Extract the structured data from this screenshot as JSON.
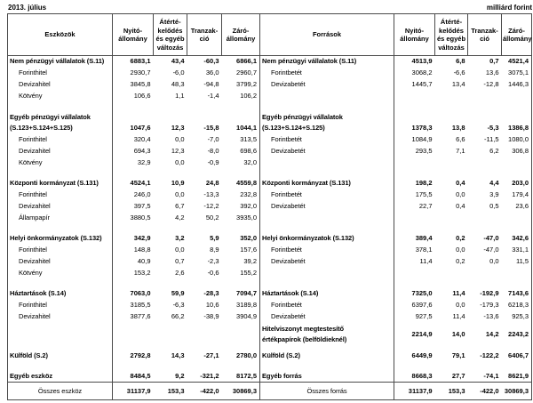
{
  "meta": {
    "period": "2013. július",
    "unit": "milliárd forint"
  },
  "header": {
    "assets": "Eszközök",
    "sources": "Források",
    "opening": "Nyitó-\nállomány",
    "revaluation": "Átérté-\nkelődés\nés egyéb\nváltozás",
    "transaction": "Tranzak-\nció",
    "closing": "Záró-\nállomány"
  },
  "rows": [
    {
      "type": "group",
      "left": {
        "label": "Nem pénzügyi vállalatok (S.11)",
        "values": [
          "6883,1",
          "43,4",
          "-60,3",
          "6866,1"
        ]
      },
      "right": {
        "label": "Nem pénzügyi vállalatok (S.11)",
        "values": [
          "4513,9",
          "6,8",
          "0,7",
          "4521,4"
        ]
      }
    },
    {
      "type": "sub",
      "left": {
        "label": "Forinthitel",
        "values": [
          "2930,7",
          "-6,0",
          "36,0",
          "2960,7"
        ]
      },
      "right": {
        "label": "Forintbetét",
        "values": [
          "3068,2",
          "-6,6",
          "13,6",
          "3075,1"
        ]
      }
    },
    {
      "type": "sub",
      "left": {
        "label": "Devizahitel",
        "values": [
          "3845,8",
          "48,3",
          "-94,8",
          "3799,2"
        ]
      },
      "right": {
        "label": "Devizabetét",
        "values": [
          "1445,7",
          "13,4",
          "-12,8",
          "1446,3"
        ]
      }
    },
    {
      "type": "sub",
      "left": {
        "label": "Kötvény",
        "values": [
          "106,6",
          "1,1",
          "-1,4",
          "106,2"
        ]
      },
      "right": {
        "label": "",
        "values": [
          "",
          "",
          "",
          ""
        ]
      }
    },
    {
      "type": "blank"
    },
    {
      "type": "group2",
      "left": {
        "label": "Egyéb pénzügyi vállalatok\n(S.123+S.124+S.125)",
        "values": [
          "1047,6",
          "12,3",
          "-15,8",
          "1044,1"
        ]
      },
      "right": {
        "label": "Egyéb pénzügyi vállalatok\n(S.123+S.124+S.125)",
        "values": [
          "1378,3",
          "13,8",
          "-5,3",
          "1386,8"
        ]
      }
    },
    {
      "type": "sub",
      "left": {
        "label": "Forinthitel",
        "values": [
          "320,4",
          "0,0",
          "-7,0",
          "313,5"
        ]
      },
      "right": {
        "label": "Forintbetét",
        "values": [
          "1084,9",
          "6,6",
          "-11,5",
          "1080,0"
        ]
      }
    },
    {
      "type": "sub",
      "left": {
        "label": "Devizahitel",
        "values": [
          "694,3",
          "12,3",
          "-8,0",
          "698,6"
        ]
      },
      "right": {
        "label": "Devizabetét",
        "values": [
          "293,5",
          "7,1",
          "6,2",
          "306,8"
        ]
      }
    },
    {
      "type": "sub",
      "left": {
        "label": "Kötvény",
        "values": [
          "32,9",
          "0,0",
          "-0,9",
          "32,0"
        ]
      },
      "right": {
        "label": "",
        "values": [
          "",
          "",
          "",
          ""
        ]
      }
    },
    {
      "type": "blank"
    },
    {
      "type": "group",
      "left": {
        "label": "Központi kormányzat (S.131)",
        "values": [
          "4524,1",
          "10,9",
          "24,8",
          "4559,8"
        ]
      },
      "right": {
        "label": "Központi kormányzat (S.131)",
        "values": [
          "198,2",
          "0,4",
          "4,4",
          "203,0"
        ]
      }
    },
    {
      "type": "sub",
      "left": {
        "label": "Forinthitel",
        "values": [
          "246,0",
          "0,0",
          "-13,3",
          "232,8"
        ]
      },
      "right": {
        "label": "Forintbetét",
        "values": [
          "175,5",
          "0,0",
          "3,9",
          "179,4"
        ]
      }
    },
    {
      "type": "sub",
      "left": {
        "label": "Devizahitel",
        "values": [
          "397,5",
          "6,7",
          "-12,2",
          "392,0"
        ]
      },
      "right": {
        "label": "Devizabetét",
        "values": [
          "22,7",
          "0,4",
          "0,5",
          "23,6"
        ]
      }
    },
    {
      "type": "sub",
      "left": {
        "label": "Állampapír",
        "values": [
          "3880,5",
          "4,2",
          "50,2",
          "3935,0"
        ]
      },
      "right": {
        "label": "",
        "values": [
          "",
          "",
          "",
          ""
        ]
      }
    },
    {
      "type": "blank"
    },
    {
      "type": "group",
      "left": {
        "label": "Helyi önkormányzatok (S.132)",
        "values": [
          "342,9",
          "3,2",
          "5,9",
          "352,0"
        ]
      },
      "right": {
        "label": "Helyi önkormányzatok (S.132)",
        "values": [
          "389,4",
          "0,2",
          "-47,0",
          "342,6"
        ]
      }
    },
    {
      "type": "sub",
      "left": {
        "label": "Forinthitel",
        "values": [
          "148,8",
          "0,0",
          "8,9",
          "157,6"
        ]
      },
      "right": {
        "label": "Forintbetét",
        "values": [
          "378,1",
          "0,0",
          "-47,0",
          "331,1"
        ]
      }
    },
    {
      "type": "sub",
      "left": {
        "label": "Devizahitel",
        "values": [
          "40,9",
          "0,7",
          "-2,3",
          "39,2"
        ]
      },
      "right": {
        "label": "Devizabetét",
        "values": [
          "11,4",
          "0,2",
          "0,0",
          "11,5"
        ]
      }
    },
    {
      "type": "sub",
      "left": {
        "label": "Kötvény",
        "values": [
          "153,2",
          "2,6",
          "-0,6",
          "155,2"
        ]
      },
      "right": {
        "label": "",
        "values": [
          "",
          "",
          "",
          ""
        ]
      }
    },
    {
      "type": "blank"
    },
    {
      "type": "group",
      "left": {
        "label": "Háztartások (S.14)",
        "values": [
          "7063,0",
          "59,9",
          "-28,3",
          "7094,7"
        ]
      },
      "right": {
        "label": "Háztartások (S.14)",
        "values": [
          "7325,0",
          "11,4",
          "-192,9",
          "7143,6"
        ]
      }
    },
    {
      "type": "sub",
      "left": {
        "label": "Forinthitel",
        "values": [
          "3185,5",
          "-6,3",
          "10,6",
          "3189,8"
        ]
      },
      "right": {
        "label": "Forintbetét",
        "values": [
          "6397,6",
          "0,0",
          "-179,3",
          "6218,3"
        ]
      }
    },
    {
      "type": "sub",
      "left": {
        "label": "Devizahitel",
        "values": [
          "3877,6",
          "66,2",
          "-38,9",
          "3904,9"
        ]
      },
      "right": {
        "label": "Devizabetét",
        "values": [
          "927,5",
          "11,4",
          "-13,6",
          "925,3"
        ]
      }
    },
    {
      "type": "group2m",
      "left": {
        "label": "",
        "values": [
          "",
          "",
          "",
          ""
        ]
      },
      "right": {
        "label": "Hitelviszonyt megtestesítő\nértékpapírok (belföldieknél)",
        "values": [
          "2214,9",
          "14,0",
          "14,2",
          "2243,2"
        ]
      }
    },
    {
      "type": "blank-sm"
    },
    {
      "type": "group",
      "left": {
        "label": "Külföld (S.2)",
        "values": [
          "2792,8",
          "14,3",
          "-27,1",
          "2780,0"
        ]
      },
      "right": {
        "label": "Külföld (S.2)",
        "values": [
          "6449,9",
          "79,1",
          "-122,2",
          "6406,7"
        ]
      }
    },
    {
      "type": "blank"
    },
    {
      "type": "group",
      "left": {
        "label": "Egyéb eszköz",
        "values": [
          "8484,5",
          "9,2",
          "-321,2",
          "8172,5"
        ]
      },
      "right": {
        "label": "Egyéb forrás",
        "values": [
          "8668,3",
          "27,7",
          "-74,1",
          "8621,9"
        ]
      }
    },
    {
      "type": "total",
      "left": {
        "label": "Összes eszköz",
        "values": [
          "31137,9",
          "153,3",
          "-422,0",
          "30869,3"
        ]
      },
      "right": {
        "label": "Összes forrás",
        "values": [
          "31137,9",
          "153,3",
          "-422,0",
          "30869,3"
        ]
      }
    }
  ]
}
